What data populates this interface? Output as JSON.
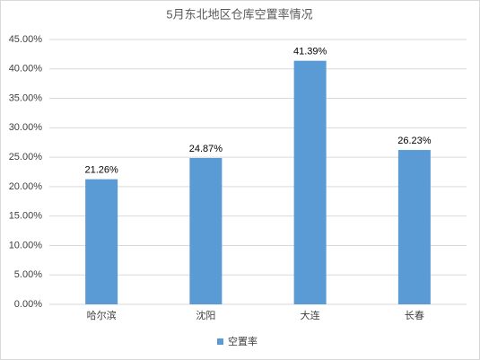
{
  "chart_data": {
    "type": "bar",
    "title": "5月东北地区仓库空置率情况",
    "categories": [
      "哈尔滨",
      "沈阳",
      "大连",
      "长春"
    ],
    "series": [
      {
        "name": "空置率",
        "color": "#5b9bd5",
        "values": [
          21.26,
          24.87,
          41.39,
          26.23
        ],
        "value_labels": [
          "21.26%",
          "24.87%",
          "41.39%",
          "26.23%"
        ]
      }
    ],
    "ylim": [
      0,
      45
    ],
    "yticks": [
      {
        "value": 0,
        "label": "0.00%"
      },
      {
        "value": 5,
        "label": "5.00%"
      },
      {
        "value": 10,
        "label": "10.00%"
      },
      {
        "value": 15,
        "label": "15.00%"
      },
      {
        "value": 20,
        "label": "20.00%"
      },
      {
        "value": 25,
        "label": "25.00%"
      },
      {
        "value": 30,
        "label": "30.00%"
      },
      {
        "value": 35,
        "label": "35.00%"
      },
      {
        "value": 40,
        "label": "40.00%"
      },
      {
        "value": 45,
        "label": "45.00%"
      }
    ],
    "grid": true,
    "legend": "bottom"
  }
}
